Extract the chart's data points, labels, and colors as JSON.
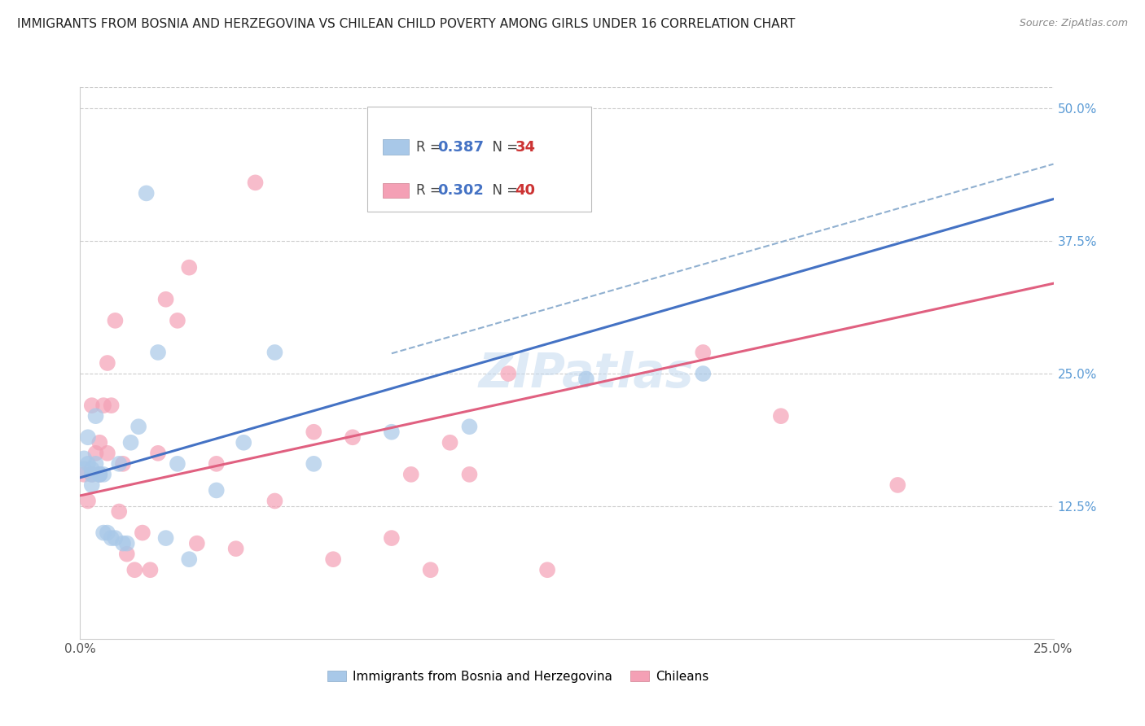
{
  "title": "IMMIGRANTS FROM BOSNIA AND HERZEGOVINA VS CHILEAN CHILD POVERTY AMONG GIRLS UNDER 16 CORRELATION CHART",
  "source": "Source: ZipAtlas.com",
  "ylabel_ticks": [
    "12.5%",
    "25.0%",
    "37.5%",
    "50.0%"
  ],
  "ylabel_values": [
    0.125,
    0.25,
    0.375,
    0.5
  ],
  "xmin": 0.0,
  "xmax": 0.25,
  "ymin": 0.0,
  "ymax": 0.52,
  "watermark": "ZIPatlas",
  "legend_label1": "Immigrants from Bosnia and Herzegovina",
  "legend_label2": "Chileans",
  "blue_color": "#A8C8E8",
  "pink_color": "#F4A0B5",
  "blue_line_color": "#4472C4",
  "pink_line_color": "#E06080",
  "dashed_line_color": "#90B0D0",
  "blue_scatter_x": [
    0.001,
    0.001,
    0.002,
    0.002,
    0.003,
    0.003,
    0.003,
    0.004,
    0.004,
    0.005,
    0.005,
    0.006,
    0.006,
    0.007,
    0.008,
    0.009,
    0.01,
    0.011,
    0.012,
    0.013,
    0.015,
    0.017,
    0.02,
    0.022,
    0.025,
    0.028,
    0.035,
    0.042,
    0.05,
    0.06,
    0.08,
    0.1,
    0.13,
    0.16
  ],
  "blue_scatter_y": [
    0.17,
    0.16,
    0.19,
    0.165,
    0.155,
    0.16,
    0.145,
    0.165,
    0.21,
    0.155,
    0.155,
    0.1,
    0.155,
    0.1,
    0.095,
    0.095,
    0.165,
    0.09,
    0.09,
    0.185,
    0.2,
    0.42,
    0.27,
    0.095,
    0.165,
    0.075,
    0.14,
    0.185,
    0.27,
    0.165,
    0.195,
    0.2,
    0.245,
    0.25
  ],
  "pink_scatter_x": [
    0.001,
    0.002,
    0.003,
    0.003,
    0.004,
    0.005,
    0.005,
    0.006,
    0.007,
    0.007,
    0.008,
    0.009,
    0.01,
    0.011,
    0.012,
    0.014,
    0.016,
    0.018,
    0.02,
    0.022,
    0.025,
    0.028,
    0.03,
    0.035,
    0.04,
    0.045,
    0.05,
    0.06,
    0.065,
    0.07,
    0.08,
    0.085,
    0.09,
    0.095,
    0.1,
    0.11,
    0.12,
    0.16,
    0.18,
    0.21
  ],
  "pink_scatter_y": [
    0.155,
    0.13,
    0.155,
    0.22,
    0.175,
    0.185,
    0.155,
    0.22,
    0.175,
    0.26,
    0.22,
    0.3,
    0.12,
    0.165,
    0.08,
    0.065,
    0.1,
    0.065,
    0.175,
    0.32,
    0.3,
    0.35,
    0.09,
    0.165,
    0.085,
    0.43,
    0.13,
    0.195,
    0.075,
    0.19,
    0.095,
    0.155,
    0.065,
    0.185,
    0.155,
    0.25,
    0.065,
    0.27,
    0.21,
    0.145
  ],
  "blue_intercept": 0.152,
  "blue_slope": 1.05,
  "pink_intercept": 0.135,
  "pink_slope": 0.8,
  "blue_dash_intercept": 0.185,
  "blue_dash_slope": 1.05,
  "grid_color": "#CCCCCC",
  "title_fontsize": 11,
  "tick_fontsize": 11,
  "marker_size": 200
}
